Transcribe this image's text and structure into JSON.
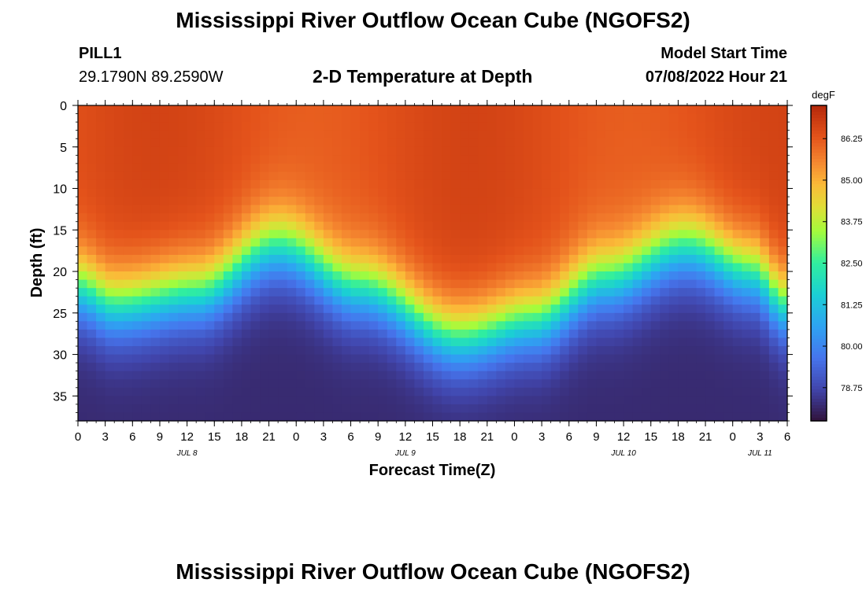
{
  "header": {
    "title": "Mississippi River Outflow Ocean Cube (NGOFS2)",
    "station_id": "PILL1",
    "station_coords": "29.1790N  89.2590W",
    "subtitle": "2-D Temperature at Depth",
    "model_start_label": "Model Start Time",
    "model_start_value": "07/08/2022 Hour 21"
  },
  "footer": {
    "title": "Mississippi River Outflow Ocean Cube (NGOFS2)"
  },
  "chart_data": {
    "type": "heatmap",
    "title": "2-D Temperature at Depth",
    "xlabel": "Forecast Time(Z)",
    "ylabel": "Depth (ft)",
    "colorbar_label": "degF",
    "x_hours_range": [
      0,
      78
    ],
    "x_tick_hours": [
      0,
      3,
      6,
      9,
      12,
      15,
      18,
      21,
      24,
      27,
      30,
      33,
      36,
      39,
      42,
      45,
      48,
      51,
      54,
      57,
      60,
      63,
      66,
      69,
      72,
      75,
      78
    ],
    "x_tick_labels": [
      "0",
      "3",
      "6",
      "9",
      "12",
      "15",
      "18",
      "21",
      "0",
      "3",
      "6",
      "9",
      "12",
      "15",
      "18",
      "21",
      "0",
      "3",
      "6",
      "9",
      "12",
      "15",
      "18",
      "21",
      "0",
      "3",
      "6"
    ],
    "date_labels": [
      {
        "hour": 12,
        "label": "JUL 8"
      },
      {
        "hour": 36,
        "label": "JUL 9"
      },
      {
        "hour": 60,
        "label": "JUL 10"
      },
      {
        "hour": 75,
        "label": "JUL 11"
      }
    ],
    "y_range_ft": [
      0,
      38
    ],
    "y_ticks": [
      0,
      5,
      10,
      15,
      20,
      25,
      30,
      35
    ],
    "colorbar_range_degF": [
      77.75,
      87.25
    ],
    "colorbar_ticks": [
      "86.25",
      "85.00",
      "83.75",
      "82.50",
      "81.25",
      "80.00",
      "78.75"
    ],
    "grid_resolution": {
      "x_cells": 78,
      "depth_cells": 38
    },
    "field_description": {
      "surface_temp_degF": 86.4,
      "bottom_temp_degF": 78.2,
      "thermocline_depth_ft": [
        {
          "hour": 0,
          "depth": 22
        },
        {
          "hour": 4,
          "depth": 24
        },
        {
          "hour": 13,
          "depth": 22.5
        },
        {
          "hour": 22,
          "depth": 17
        },
        {
          "hour": 31,
          "depth": 22
        },
        {
          "hour": 42,
          "depth": 28
        },
        {
          "hour": 50,
          "depth": 26
        },
        {
          "hour": 58,
          "depth": 21
        },
        {
          "hour": 67,
          "depth": 17
        },
        {
          "hour": 74,
          "depth": 20
        },
        {
          "hour": 78,
          "depth": 24
        }
      ]
    }
  }
}
